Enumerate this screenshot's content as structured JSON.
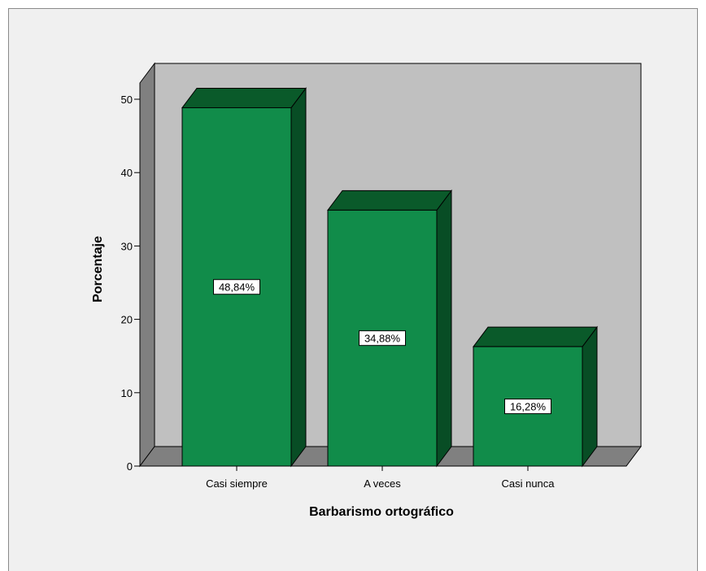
{
  "chart_data": {
    "type": "bar",
    "title": "",
    "xlabel": "Barbarismo ortográfico",
    "ylabel": "Porcentaje",
    "ylim": [
      0,
      50
    ],
    "yticks": [
      0,
      10,
      20,
      30,
      40,
      50
    ],
    "categories": [
      "Casi siempre",
      "A veces",
      "Casi nunca"
    ],
    "values": [
      48.84,
      34.88,
      16.28
    ],
    "data_labels": [
      "48,84%",
      "34,88%",
      "16,28%"
    ],
    "grid": false,
    "legend": "none",
    "colors": {
      "bar_front": "#118c4a",
      "bar_top": "#0a5a2a",
      "bar_side": "#084d25",
      "back_wall": "#c0c0c0",
      "side_wall": "#808080",
      "floor": "#808080",
      "background": "#f0f0f0"
    }
  }
}
